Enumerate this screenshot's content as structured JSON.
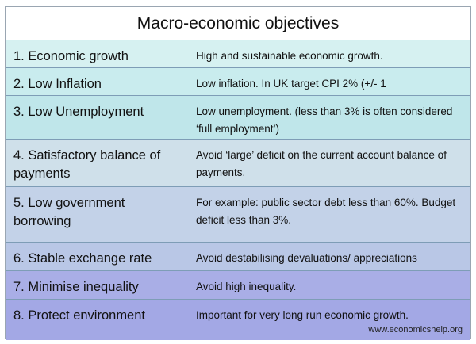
{
  "title": "Macro-economic objectives",
  "rows": [
    {
      "objective": "1. Economic growth",
      "description": "High and sustainable economic growth."
    },
    {
      "objective": "2. Low Inflation",
      "description": "Low inflation. In UK target CPI 2% (+/- 1"
    },
    {
      "objective": "3. Low Unemployment",
      "description": "Low unemployment. (less than 3% is often considered ‘full employment’)"
    },
    {
      "objective": "4. Satisfactory balance of payments",
      "description": "Avoid ‘large’ deficit on the current account balance of payments."
    },
    {
      "objective": "5. Low government borrowing",
      "description": "For example: public sector debt less than 60%. Budget deficit less than 3%."
    },
    {
      "objective": "6. Stable exchange rate",
      "description": "Avoid destabilising devaluations/ appreciations"
    },
    {
      "objective": "7. Minimise inequality",
      "description": "Avoid high inequality."
    },
    {
      "objective": "8. Protect environment",
      "description": "Important for very long run economic growth."
    }
  ],
  "credit": "www.economicshelp.org"
}
